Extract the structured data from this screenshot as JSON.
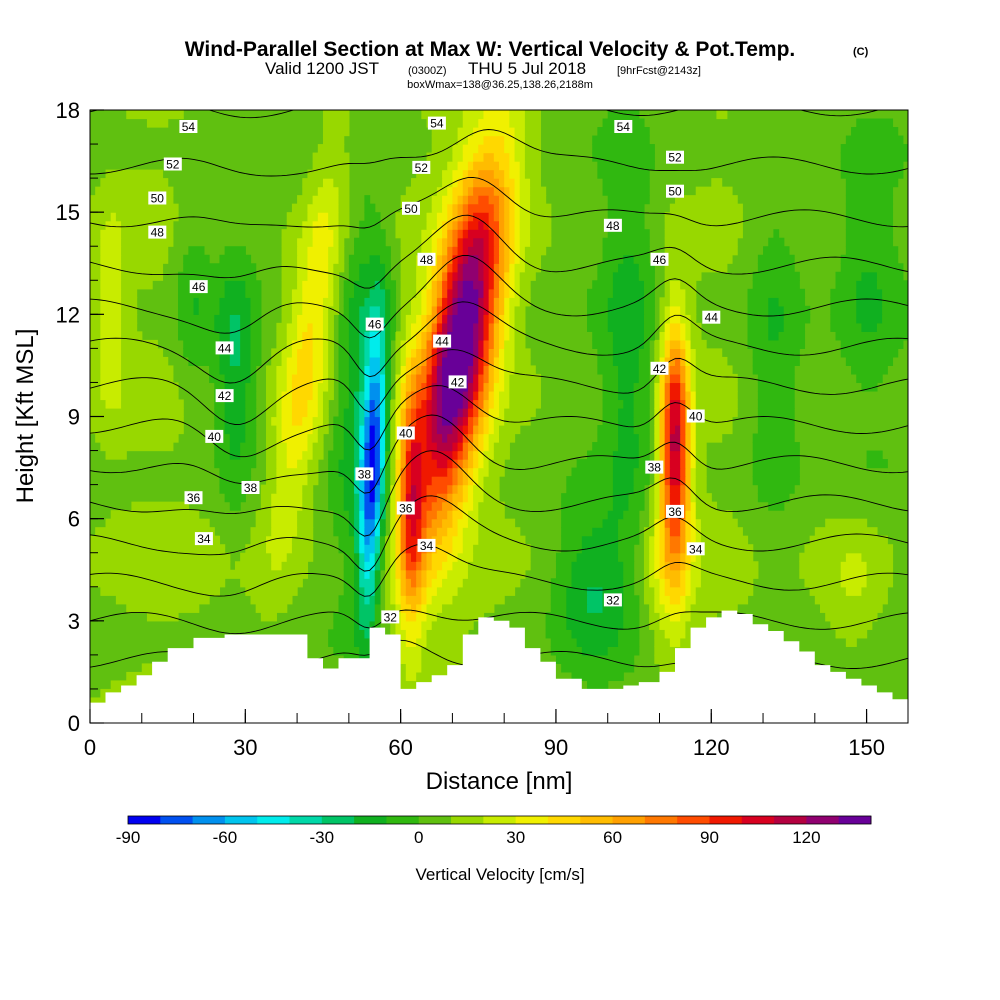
{
  "chart_data": {
    "type": "heatmap",
    "title": "Wind-Parallel Section at Max W: Vertical Velocity & Pot.Temp.",
    "copyright_mark": "(C)",
    "subtitle": {
      "valid_prefix": "Valid 1200 JST",
      "zulu": "(0300Z)",
      "date": "THU 5 Jul 2018",
      "forecast": "[9hrFcst@2143z]"
    },
    "box_info": "boxWmax=138@36.25,138.26,2188m",
    "xlabel": "Distance [nm]",
    "ylabel": "Height [Kft MSL]",
    "xlim": [
      0,
      158
    ],
    "ylim": [
      0,
      18
    ],
    "x_ticks": [
      0,
      30,
      60,
      90,
      120,
      150
    ],
    "y_ticks": [
      0,
      3,
      6,
      9,
      12,
      15,
      18
    ],
    "x_tick_labels": [
      "0",
      "30",
      "60",
      "90",
      "120",
      "150"
    ],
    "y_tick_labels": [
      "0",
      "3",
      "6",
      "9",
      "12",
      "15",
      "18"
    ],
    "colorbar": {
      "title": "Vertical Velocity [cm/s]",
      "min": -90,
      "max": 140,
      "step": 10,
      "tick_values": [
        -90,
        -60,
        -30,
        0,
        30,
        60,
        90,
        120
      ],
      "tick_labels": [
        "-90",
        "-60",
        "-30",
        "0",
        "30",
        "60",
        "90",
        "120"
      ],
      "colors": [
        "#0000f0",
        "#0050f0",
        "#0090ee",
        "#00c4ee",
        "#00ecec",
        "#00d8a8",
        "#00c466",
        "#10b020",
        "#30b810",
        "#60c010",
        "#98d800",
        "#c8ec00",
        "#f0f000",
        "#ffd800",
        "#ffbc00",
        "#ffa000",
        "#ff7800",
        "#ff4c00",
        "#f01800",
        "#d80020",
        "#b40040",
        "#900070",
        "#680098"
      ]
    },
    "vertical_velocity_features": [
      {
        "name": "downdraft-core",
        "x": 55,
        "y": 6.5,
        "peak": -80
      },
      {
        "name": "main-updraft",
        "x": 75,
        "y": 11,
        "peak": 138
      },
      {
        "name": "secondary-updraft",
        "x": 113,
        "y": 8.5,
        "peak": 105
      },
      {
        "name": "left-downdraft",
        "x": 28,
        "y": 10.5,
        "peak": -30
      },
      {
        "name": "right-downdraft",
        "x": 98,
        "y": 4,
        "peak": -25
      },
      {
        "name": "upper-updraft-left",
        "x": 42,
        "y": 12,
        "peak": 40
      }
    ],
    "theta_contours": {
      "levels": [
        32,
        34,
        36,
        38,
        40,
        42,
        44,
        46,
        48,
        50,
        52,
        54
      ],
      "labels": [
        {
          "text": "54",
          "x": 19,
          "y": 17.5
        },
        {
          "text": "54",
          "x": 67,
          "y": 17.6
        },
        {
          "text": "54",
          "x": 103,
          "y": 17.5
        },
        {
          "text": "52",
          "x": 16,
          "y": 16.4
        },
        {
          "text": "52",
          "x": 64,
          "y": 16.3
        },
        {
          "text": "52",
          "x": 113,
          "y": 16.6
        },
        {
          "text": "50",
          "x": 13,
          "y": 15.4
        },
        {
          "text": "50",
          "x": 62,
          "y": 15.1
        },
        {
          "text": "50",
          "x": 113,
          "y": 15.6
        },
        {
          "text": "48",
          "x": 13,
          "y": 14.4
        },
        {
          "text": "48",
          "x": 65,
          "y": 13.6
        },
        {
          "text": "48",
          "x": 101,
          "y": 14.6
        },
        {
          "text": "46",
          "x": 21,
          "y": 12.8
        },
        {
          "text": "46",
          "x": 55,
          "y": 11.7
        },
        {
          "text": "46",
          "x": 110,
          "y": 13.6
        },
        {
          "text": "44",
          "x": 26,
          "y": 11.0
        },
        {
          "text": "44",
          "x": 68,
          "y": 11.2
        },
        {
          "text": "44",
          "x": 120,
          "y": 11.9
        },
        {
          "text": "42",
          "x": 26,
          "y": 9.6
        },
        {
          "text": "42",
          "x": 71,
          "y": 10.0
        },
        {
          "text": "42",
          "x": 110,
          "y": 10.4
        },
        {
          "text": "40",
          "x": 24,
          "y": 8.4
        },
        {
          "text": "40",
          "x": 61,
          "y": 8.5
        },
        {
          "text": "40",
          "x": 117,
          "y": 9.0
        },
        {
          "text": "38",
          "x": 31,
          "y": 6.9
        },
        {
          "text": "38",
          "x": 53,
          "y": 7.3
        },
        {
          "text": "38",
          "x": 109,
          "y": 7.5
        },
        {
          "text": "36",
          "x": 20,
          "y": 6.6
        },
        {
          "text": "36",
          "x": 61,
          "y": 6.3
        },
        {
          "text": "36",
          "x": 113,
          "y": 6.2
        },
        {
          "text": "34",
          "x": 22,
          "y": 5.4
        },
        {
          "text": "34",
          "x": 65,
          "y": 5.2
        },
        {
          "text": "34",
          "x": 117,
          "y": 5.1
        },
        {
          "text": "32",
          "x": 58,
          "y": 3.1
        },
        {
          "text": "32",
          "x": 101,
          "y": 3.6
        }
      ]
    },
    "terrain_profile": {
      "x": [
        0,
        3,
        6,
        9,
        12,
        15,
        20,
        26,
        33,
        39,
        42,
        45,
        48,
        54,
        57,
        60,
        63,
        66,
        69,
        72,
        75,
        78,
        81,
        84,
        87,
        90,
        95,
        100,
        103,
        106,
        110,
        113,
        116,
        119,
        122,
        125,
        128,
        131,
        134,
        137,
        140,
        143,
        146,
        149,
        152,
        155,
        158
      ],
      "y": [
        0.6,
        0.9,
        1.1,
        1.4,
        1.8,
        2.2,
        2.5,
        2.6,
        2.6,
        2.6,
        1.9,
        1.6,
        1.9,
        2.8,
        2.6,
        1.0,
        1.2,
        1.4,
        1.7,
        2.6,
        3.1,
        3.0,
        2.8,
        2.2,
        1.8,
        1.3,
        1.0,
        1.0,
        1.1,
        1.2,
        1.5,
        2.2,
        2.8,
        3.1,
        3.3,
        3.2,
        2.9,
        2.7,
        2.4,
        2.1,
        1.7,
        1.5,
        1.3,
        1.1,
        0.9,
        0.7,
        0.6
      ]
    }
  }
}
